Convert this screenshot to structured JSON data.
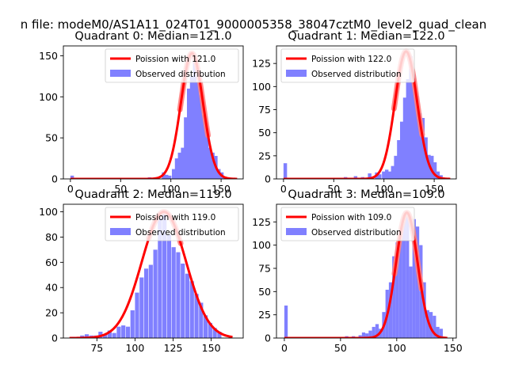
{
  "figure": {
    "suptitle": "n file: modeM0/AS1A11_024T01_9000005358_38047cztM0_level2_quad_clean",
    "background": "#ffffff"
  },
  "chart_data": [
    {
      "type": "bar",
      "title": "Quadrant 0: Median=121.0",
      "xlim": [
        -7,
        172
      ],
      "ylim": [
        0,
        162
      ],
      "xticks": [
        0,
        50,
        100,
        150
      ],
      "yticks": [
        0,
        50,
        100,
        150
      ],
      "bin_width": 3.5,
      "hist": {
        "name": "Observed distribution",
        "color": "#8080ff",
        "x": [
          0,
          77,
          84,
          91,
          94,
          97,
          101,
          104,
          107,
          110,
          113,
          116,
          119,
          122,
          125,
          128,
          131,
          134,
          137,
          140,
          143,
          146,
          149,
          152,
          155,
          158
        ],
        "values": [
          4,
          2,
          2,
          8,
          5,
          4,
          12,
          25,
          32,
          38,
          75,
          110,
          125,
          150,
          118,
          102,
          78,
          62,
          38,
          32,
          28,
          12,
          8,
          3,
          2,
          1
        ]
      },
      "curve": {
        "name": "Poission with 121.0",
        "color": "#ff0000",
        "mean": 121.0,
        "sigma": 11.0,
        "peak": 153,
        "x_range": [
          0,
          166
        ],
        "glow_range": [
          109,
          137
        ]
      },
      "legend": "top-right"
    },
    {
      "type": "bar",
      "title": "Quadrant 1: Median=122.0",
      "xlim": [
        -7,
        172
      ],
      "ylim": [
        0,
        144
      ],
      "xticks": [
        0,
        50,
        100,
        150
      ],
      "yticks": [
        0,
        25,
        50,
        75,
        100,
        125
      ],
      "bin_width": 3.5,
      "hist": {
        "name": "Observed distribution",
        "color": "#8080ff",
        "x": [
          0,
          60,
          70,
          77,
          84,
          91,
          94,
          98,
          101,
          104,
          107,
          110,
          113,
          116,
          119,
          122,
          125,
          128,
          131,
          134,
          137,
          140,
          143,
          146,
          149,
          152,
          155,
          158
        ],
        "values": [
          17,
          2,
          3,
          2,
          6,
          7,
          5,
          8,
          10,
          8,
          14,
          25,
          42,
          62,
          88,
          108,
          133,
          113,
          90,
          71,
          66,
          45,
          26,
          25,
          18,
          8,
          4,
          1
        ]
      },
      "curve": {
        "name": "Poission with 122.0",
        "color": "#ff0000",
        "mean": 122.0,
        "sigma": 11.0,
        "peak": 138,
        "x_range": [
          0,
          166
        ],
        "glow_range": [
          110,
          138
        ]
      },
      "legend": "top-left"
    },
    {
      "type": "bar",
      "title": "Quadrant 2: Median=119.0",
      "xlim": [
        53,
        171
      ],
      "ylim": [
        0,
        106
      ],
      "xticks": [
        75,
        100,
        125,
        150
      ],
      "yticks": [
        0,
        20,
        40,
        60,
        80,
        100
      ],
      "bin_width": 2.7,
      "hist": {
        "name": "Observed distribution",
        "color": "#8080ff",
        "x": [
          58,
          61,
          64,
          67,
          70,
          73,
          76,
          79,
          82,
          85,
          88,
          91,
          94,
          97,
          100,
          103,
          106,
          109,
          112,
          115,
          118,
          121,
          124,
          127,
          130,
          133,
          136,
          139,
          142,
          145,
          148,
          151,
          154
        ],
        "values": [
          1,
          1,
          2,
          3,
          2,
          2,
          5,
          3,
          6,
          4,
          9,
          10,
          9,
          22,
          36,
          48,
          55,
          58,
          70,
          95,
          98,
          82,
          72,
          68,
          59,
          51,
          45,
          35,
          28,
          18,
          12,
          8,
          5
        ]
      },
      "curve": {
        "name": "Poission with 119.0",
        "color": "#ff0000",
        "mean": 119.0,
        "sigma": 14.5,
        "peak": 100,
        "x_range": [
          57,
          164
        ],
        "glow_range": [
          109,
          130
        ]
      },
      "legend": "top-right"
    },
    {
      "type": "bar",
      "title": "Quadrant 3: Median=109.0",
      "xlim": [
        -7,
        153
      ],
      "ylim": [
        0,
        144
      ],
      "xticks": [
        0,
        50,
        100,
        150
      ],
      "yticks": [
        0,
        25,
        50,
        75,
        100,
        125
      ],
      "bin_width": 3.0,
      "hist": {
        "name": "Observed distribution",
        "color": "#8080ff",
        "x": [
          0,
          54,
          60,
          63,
          66,
          69,
          72,
          75,
          78,
          81,
          84,
          87,
          90,
          93,
          96,
          99,
          102,
          105,
          108,
          111,
          114,
          117,
          120,
          123,
          126,
          129,
          132,
          135,
          138,
          141
        ],
        "values": [
          35,
          2,
          2,
          1,
          3,
          6,
          5,
          8,
          12,
          15,
          10,
          28,
          52,
          60,
          88,
          103,
          115,
          130,
          135,
          77,
          128,
          120,
          100,
          60,
          30,
          28,
          24,
          12,
          10,
          1
        ]
      },
      "curve": {
        "name": "Poission with 109.0",
        "color": "#ff0000",
        "mean": 109.0,
        "sigma": 9.5,
        "peak": 135,
        "x_range": [
          0,
          145
        ],
        "glow_range": [
          98,
          122
        ]
      },
      "legend": "top-left"
    }
  ]
}
